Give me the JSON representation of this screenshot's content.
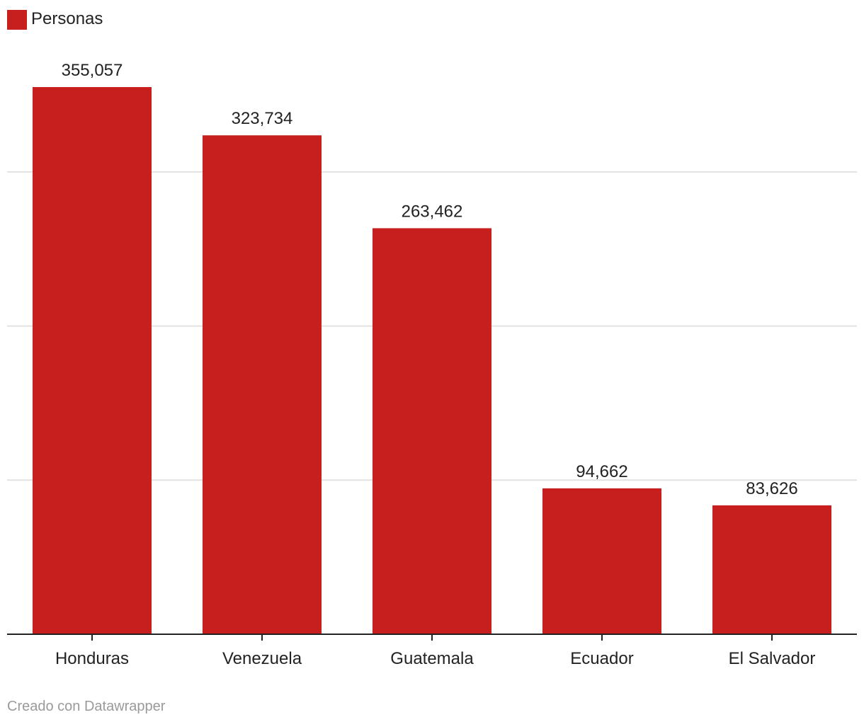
{
  "chart_data": {
    "type": "bar",
    "categories": [
      "Honduras",
      "Venezuela",
      "Guatemala",
      "Ecuador",
      "El Salvador"
    ],
    "series": [
      {
        "name": "Personas",
        "values": [
          355057,
          323734,
          263462,
          94662,
          83626
        ],
        "value_labels": [
          "355,057",
          "323,734",
          "263,462",
          "94,662",
          "83,626"
        ],
        "color": "#c71e1e"
      }
    ],
    "ylim": [
      0,
      400000
    ],
    "gridlines": [
      100000,
      200000,
      300000
    ],
    "y_tick_labels_shown": false,
    "grid": true,
    "legend": "top-left"
  },
  "footer": {
    "credit": "Creado con Datawrapper"
  }
}
